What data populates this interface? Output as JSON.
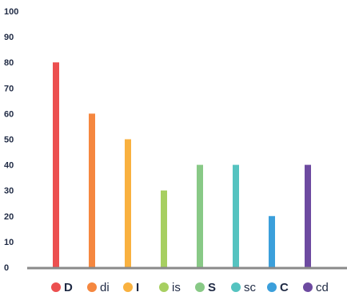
{
  "chart_data": {
    "type": "bar",
    "title": "",
    "xlabel": "",
    "ylabel": "",
    "ylim": [
      0,
      100
    ],
    "yticks": [
      0,
      10,
      20,
      30,
      40,
      50,
      60,
      70,
      80,
      90,
      100
    ],
    "grid": false,
    "legend_position": "bottom",
    "categories": [
      "D",
      "di",
      "I",
      "is",
      "S",
      "sc",
      "C",
      "cd"
    ],
    "values": [
      80,
      60,
      50,
      30,
      40,
      40,
      20,
      40
    ],
    "colors": [
      "#ec4f4f",
      "#f5873f",
      "#f9b13f",
      "#a7cf61",
      "#88c986",
      "#55c3c0",
      "#3b9fdb",
      "#6d4aa0"
    ],
    "legend_bold": [
      true,
      false,
      true,
      false,
      true,
      false,
      true,
      false
    ],
    "axis_color": "#8a8a8a",
    "label_color": "#1f2a44"
  }
}
